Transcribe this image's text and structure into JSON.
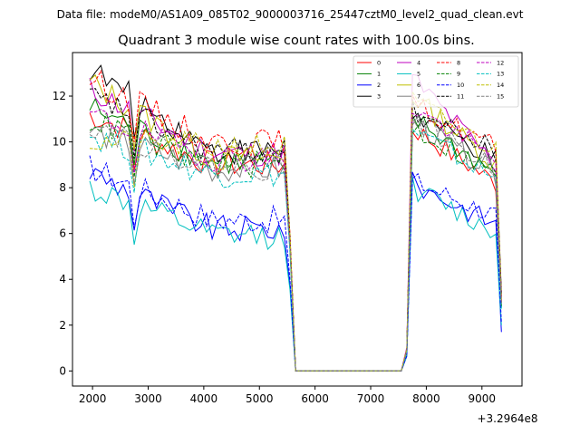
{
  "chart_data": {
    "type": "line",
    "suptitle": "Data file: modeM0/AS1A09_085T02_9000003716_25447cztM0_level2_quad_clean.evt",
    "title": "Quadrant 3 module wise count rates with 100.0s bins.",
    "xlabel": "",
    "ylabel": "",
    "x_offset_label": "+3.2964e8",
    "xlim": [
      1640,
      9720
    ],
    "ylim": [
      -0.66,
      13.9
    ],
    "xticks": [
      2000,
      3000,
      4000,
      5000,
      6000,
      7000,
      8000,
      9000
    ],
    "yticks": [
      0,
      2,
      4,
      6,
      8,
      10,
      12
    ],
    "legend": {
      "position": "top-right",
      "columns": 4
    },
    "series": [
      {
        "name": "0",
        "color": "#ff0000",
        "dash": "solid",
        "start": 11.2,
        "level": 9.0,
        "post_start": 10.6,
        "post_end": 8.2,
        "end": 3.0
      },
      {
        "name": "1",
        "color": "#008000",
        "dash": "solid",
        "start": 11.5,
        "level": 9.1,
        "post_start": 11.0,
        "post_end": 8.6,
        "end": 2.8
      },
      {
        "name": "2",
        "color": "#0000ff",
        "dash": "solid",
        "start": 8.7,
        "level": 6.2,
        "post_start": 8.2,
        "post_end": 6.4,
        "end": 1.7
      },
      {
        "name": "3",
        "color": "#000000",
        "dash": "solid",
        "start": 13.2,
        "level": 9.6,
        "post_start": 11.2,
        "post_end": 9.2,
        "end": 3.4
      },
      {
        "name": "4",
        "color": "#bf00bf",
        "dash": "solid",
        "start": 12.3,
        "level": 9.5,
        "post_start": 12.8,
        "post_end": 9.0,
        "end": 3.2
      },
      {
        "name": "5",
        "color": "#00bfbf",
        "dash": "solid",
        "start": 8.0,
        "level": 5.9,
        "post_start": 8.0,
        "post_end": 6.0,
        "end": 2.0
      },
      {
        "name": "6",
        "color": "#bfbf00",
        "dash": "solid",
        "start": 12.6,
        "level": 9.3,
        "post_start": 12.0,
        "post_end": 9.0,
        "end": 3.0
      },
      {
        "name": "7",
        "color": "#808080",
        "dash": "solid",
        "start": 10.5,
        "level": 8.8,
        "post_start": 10.9,
        "post_end": 8.6,
        "end": 2.9
      },
      {
        "name": "8",
        "color": "#ff0000",
        "dash": "dashed",
        "start": 12.8,
        "level": 10.0,
        "post_start": 11.6,
        "post_end": 9.8,
        "end": 3.2
      },
      {
        "name": "9",
        "color": "#008000",
        "dash": "dashed",
        "start": 11.0,
        "level": 9.0,
        "post_start": 10.6,
        "post_end": 8.6,
        "end": 2.8
      },
      {
        "name": "10",
        "color": "#0000ff",
        "dash": "dashed",
        "start": 8.9,
        "level": 6.6,
        "post_start": 8.3,
        "post_end": 6.8,
        "end": 2.1
      },
      {
        "name": "11",
        "color": "#000000",
        "dash": "dashed",
        "start": 12.0,
        "level": 9.6,
        "post_start": 11.4,
        "post_end": 9.6,
        "end": 3.3
      },
      {
        "name": "12",
        "color": "#bf00bf",
        "dash": "dashed",
        "start": 11.2,
        "level": 9.3,
        "post_start": 11.5,
        "post_end": 9.2,
        "end": 3.0
      },
      {
        "name": "13",
        "color": "#00bfbf",
        "dash": "dashed",
        "start": 10.3,
        "level": 8.6,
        "post_start": 10.5,
        "post_end": 8.4,
        "end": 2.7
      },
      {
        "name": "14",
        "color": "#bfbf00",
        "dash": "dashed",
        "start": 10.0,
        "level": 9.8,
        "post_start": 11.8,
        "post_end": 9.6,
        "end": 3.1
      },
      {
        "name": "15",
        "color": "#808080",
        "dash": "dashed",
        "start": 10.8,
        "level": 8.9,
        "post_start": 11.0,
        "post_end": 8.8,
        "end": 2.9
      }
    ]
  }
}
